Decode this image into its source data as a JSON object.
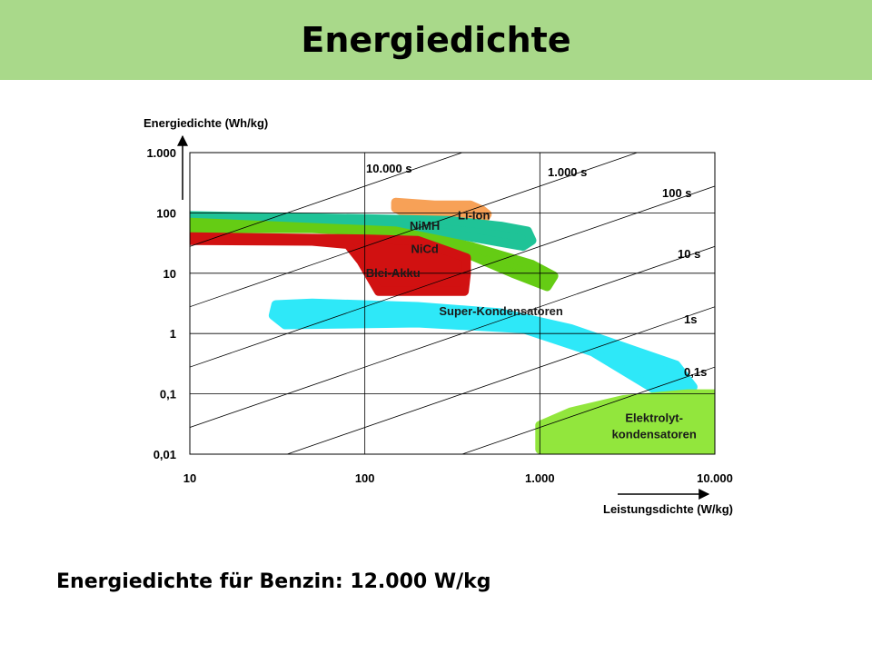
{
  "slide_title": "Energiedichte",
  "footnote": "Energiedichte für Benzin: 12.000 W/kg",
  "chart_data": {
    "type": "area",
    "title": "",
    "xlabel": "Leistungsdichte (W/kg)",
    "ylabel": "Energiedichte (Wh/kg)",
    "x_scale": "log",
    "y_scale": "log",
    "xlim": [
      10,
      10000
    ],
    "ylim": [
      0.01,
      1000
    ],
    "x_ticks": [
      {
        "value": 10,
        "label": "10"
      },
      {
        "value": 100,
        "label": "100"
      },
      {
        "value": 1000,
        "label": "1.000"
      },
      {
        "value": 10000,
        "label": "10.000"
      }
    ],
    "y_ticks": [
      {
        "value": 1000,
        "label": "1.000"
      },
      {
        "value": 100,
        "label": "100"
      },
      {
        "value": 10,
        "label": "10"
      },
      {
        "value": 1,
        "label": "1"
      },
      {
        "value": 0.1,
        "label": "0,1"
      },
      {
        "value": 0.01,
        "label": "0,01"
      }
    ],
    "grid": true,
    "time_lines": [
      {
        "seconds": 10000,
        "label": "10.000 s"
      },
      {
        "seconds": 1000,
        "label": "1.000 s"
      },
      {
        "seconds": 100,
        "label": "100 s"
      },
      {
        "seconds": 10,
        "label": "10 s"
      },
      {
        "seconds": 1,
        "label": "1s"
      },
      {
        "seconds": 0.1,
        "label": "0,1s"
      }
    ],
    "regions": [
      {
        "name": "Li-Ion",
        "color": "#f7a157",
        "polygon": [
          [
            150,
            150
          ],
          [
            250,
            135
          ],
          [
            400,
            135
          ],
          [
            470,
            110
          ],
          [
            500,
            95
          ],
          [
            470,
            70
          ],
          [
            420,
            68
          ],
          [
            300,
            80
          ],
          [
            170,
            100
          ],
          [
            150,
            120
          ]
        ],
        "label_at": [
          420,
          90
        ]
      },
      {
        "name": "NiMH",
        "color": "#1fc397",
        "polygon": [
          [
            10,
            80
          ],
          [
            50,
            78
          ],
          [
            100,
            70
          ],
          [
            200,
            55
          ],
          [
            400,
            40
          ],
          [
            800,
            28
          ],
          [
            900,
            35
          ],
          [
            850,
            50
          ],
          [
            600,
            60
          ],
          [
            300,
            75
          ],
          [
            100,
            80
          ],
          [
            10,
            90
          ]
        ],
        "label_at": [
          220,
          60
        ]
      },
      {
        "name": "NiCd",
        "color": "#65cc14",
        "polygon": [
          [
            10,
            55
          ],
          [
            50,
            55
          ],
          [
            100,
            50
          ],
          [
            200,
            35
          ],
          [
            400,
            20
          ],
          [
            700,
            10
          ],
          [
            1100,
            6
          ],
          [
            1200,
            9
          ],
          [
            900,
            14
          ],
          [
            400,
            28
          ],
          [
            150,
            50
          ],
          [
            10,
            70
          ]
        ],
        "label_at": [
          220,
          25
        ]
      },
      {
        "name": "Blei-Akku",
        "color": "#d11111",
        "polygon": [
          [
            10,
            35
          ],
          [
            50,
            34
          ],
          [
            80,
            30
          ],
          [
            95,
            16
          ],
          [
            120,
            5
          ],
          [
            370,
            5
          ],
          [
            380,
            10
          ],
          [
            380,
            18
          ],
          [
            200,
            35
          ],
          [
            100,
            37
          ],
          [
            10,
            40
          ]
        ],
        "label_at": [
          145,
          10
        ]
      },
      {
        "name": "Super-Kondensatoren",
        "color": "#2ee8f8",
        "polygon": [
          [
            31,
            3
          ],
          [
            50,
            3.2
          ],
          [
            200,
            2.8
          ],
          [
            600,
            2.2
          ],
          [
            1500,
            1.2
          ],
          [
            3000,
            0.6
          ],
          [
            6000,
            0.3
          ],
          [
            7500,
            0.13
          ],
          [
            5000,
            0.1
          ],
          [
            2000,
            0.5
          ],
          [
            800,
            1.2
          ],
          [
            200,
            1.5
          ],
          [
            35,
            1.4
          ],
          [
            30,
            2
          ]
        ],
        "label_at": [
          600,
          2.3
        ]
      },
      {
        "name": "Elektrolyt-kondensatoren",
        "color": "#92e63d",
        "polygon": [
          [
            1000,
            0.012
          ],
          [
            10000,
            0.012
          ],
          [
            10000,
            0.1
          ],
          [
            7000,
            0.1
          ],
          [
            3000,
            0.08
          ],
          [
            1500,
            0.05
          ],
          [
            1000,
            0.03
          ]
        ],
        "label_at": [
          4500,
          0.03
        ]
      }
    ]
  }
}
